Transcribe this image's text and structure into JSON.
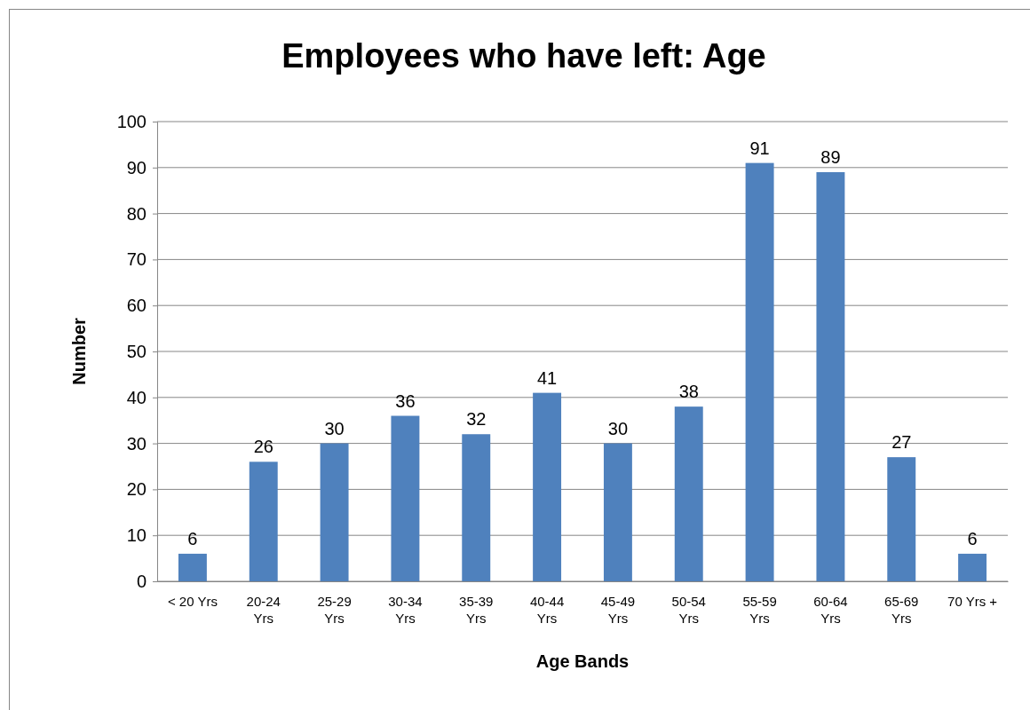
{
  "chart_data": {
    "type": "bar",
    "title": "Employees who have left: Age",
    "xlabel": "Age Bands",
    "ylabel": "Number",
    "categories": [
      "< 20 Yrs",
      "20-24\nYrs",
      "25-29\nYrs",
      "30-34\nYrs",
      "35-39\nYrs",
      "40-44\nYrs",
      "45-49\nYrs",
      "50-54\nYrs",
      "55-59\nYrs",
      "60-64\nYrs",
      "65-69\nYrs",
      "70 Yrs +"
    ],
    "values": [
      6,
      26,
      30,
      36,
      32,
      41,
      30,
      38,
      91,
      89,
      27,
      6
    ],
    "color": "#4f81bd",
    "ylim": [
      0,
      100
    ],
    "yticks": [
      0,
      10,
      20,
      30,
      40,
      50,
      60,
      70,
      80,
      90,
      100
    ],
    "grid": "y",
    "data_labels": true
  }
}
